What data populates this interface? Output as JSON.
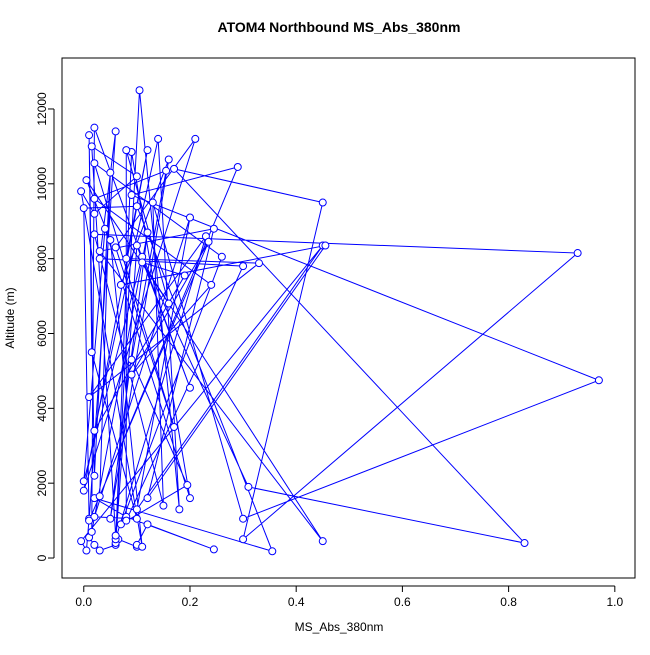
{
  "chart_data": {
    "type": "line",
    "title": "ATOM4 Northbound MS_Abs_380nm",
    "x_label": "MS_Abs_380nm",
    "y_label": "Altitude (m)",
    "color": "#0000ff",
    "markers": true,
    "x": [
      0.01,
      0.02,
      0.03,
      0.06,
      0.065,
      0.1,
      0.1,
      0.12,
      0.245,
      0.08,
      0.02,
      0.355,
      0.1,
      0.0,
      0.01,
      0.005,
      -0.005,
      0.45,
      0.1,
      0.2,
      0.02,
      0.1,
      0.015,
      0.01,
      0.02,
      0.05,
      0.03,
      0.29,
      0.09,
      0.97,
      0.3,
      0.13,
      0.15,
      0.02,
      0.93,
      0.3,
      0.45,
      0.17,
      0.83,
      0.31,
      0.11,
      0.0,
      0.04,
      0.2,
      0.09,
      0.06,
      0.1,
      0.2,
      0.02,
      0.015,
      0.12,
      0.05,
      0.16,
      0.07,
      0.455,
      0.12,
      0.245,
      0.03,
      0.45,
      0.11,
      0.19,
      0.02,
      0.14,
      0.18,
      0.105,
      0.06,
      0.23,
      0.01,
      0.33,
      0.08,
      0.12,
      0.0,
      0.21,
      0.06,
      0.17,
      0.02,
      0.26,
      0.07,
      0.195,
      0.09,
      0.155,
      0.02,
      0.24,
      0.09,
      0.235,
      0.01,
      0.06,
      0.03,
      0.3,
      0.08,
      0.08,
      0.16,
      0.005,
      0.05,
      0.11,
      -0.005,
      0.02,
      0.1,
      0.015,
      0.06
    ],
    "values": [
      550,
      350,
      200,
      350,
      500,
      300,
      350,
      900,
      230,
      1100,
      1600,
      180,
      9400,
      9350,
      1050,
      200,
      450,
      8350,
      1300,
      9100,
      1100,
      1050,
      5500,
      11300,
      2200,
      10300,
      1650,
      10450,
      9700,
      4750,
      1050,
      9500,
      1400,
      8650,
      8150,
      500,
      9500,
      10400,
      400,
      1900,
      8050,
      2050,
      8800,
      1600,
      10850,
      400,
      8350,
      4550,
      11500,
      700,
      8700,
      1050,
      10650,
      7300,
      8350,
      1600,
      8800,
      8200,
      450,
      7900,
      7550,
      3400,
      11200,
      1300,
      12500,
      500,
      8600,
      4300,
      7880,
      8000,
      10900,
      1800,
      11200,
      8300,
      3500,
      10550,
      8050,
      900,
      1950,
      5300,
      10350,
      9600,
      7300,
      4900,
      8450,
      1000,
      11400,
      8000,
      7800,
      1000,
      10900,
      6800,
      10100,
      8500,
      300,
      9800,
      9200,
      10200,
      11000,
      600
    ],
    "xlim": [
      -0.041,
      1.038
    ],
    "ylim": [
      -534,
      13362
    ],
    "xticks": [
      {
        "value": 0,
        "label": "0.0"
      },
      {
        "value": 0.2,
        "label": "0.2"
      },
      {
        "value": 0.4,
        "label": "0.4"
      },
      {
        "value": 0.6,
        "label": "0.6"
      },
      {
        "value": 0.8,
        "label": "0.8"
      },
      {
        "value": 1,
        "label": "1.0"
      }
    ],
    "yticks": [
      0,
      2000,
      4000,
      6000,
      8000,
      10000,
      12000
    ]
  }
}
